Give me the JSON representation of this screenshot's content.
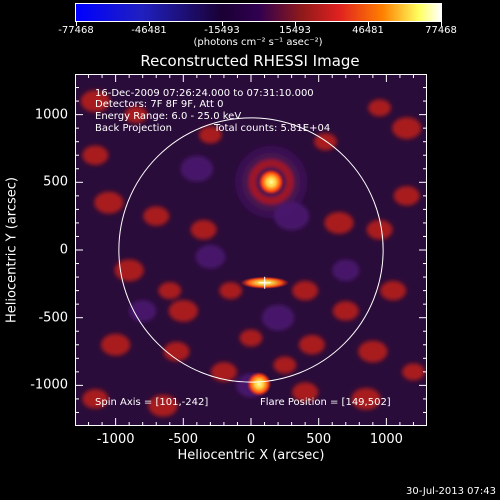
{
  "colorbar": {
    "tick_labels": [
      "-77468",
      "-46481",
      "-15493",
      "15493",
      "46481",
      "77468"
    ],
    "units": "(photons cm⁻² s⁻¹ asec⁻²)"
  },
  "title": "Reconstructed RHESSI Image",
  "info": {
    "time_range": "16-Dec-2009 07:26:24.000 to 07:31:10.000",
    "detectors": "Detectors: 7F 8F 9F, Att 0",
    "energy": "Energy Range: 6.0 - 25.0 keV",
    "method": "Back Projection",
    "counts": "Total counts: 5.81E+04",
    "spin_axis": "Spin Axis = [101,-242]",
    "flare_position": "Flare Position = [149,502]"
  },
  "footer": "30-Jul-2013 07:43",
  "chart_data": {
    "type": "heatmap",
    "title": "Reconstructed RHESSI Image",
    "xlabel": "Heliocentric X (arcsec)",
    "ylabel": "Heliocentric Y (arcsec)",
    "xlim": [
      -1300,
      1300
    ],
    "ylim": [
      -1300,
      1300
    ],
    "x_ticks": [
      -1000,
      -500,
      0,
      500,
      1000
    ],
    "y_ticks": [
      -1000,
      -500,
      0,
      500,
      1000
    ],
    "colorscale_range": [
      -77468,
      77468
    ],
    "solar_limb_radius": 976,
    "source_peak": [
      149,
      502
    ],
    "spin_axis_marker": [
      101,
      -242
    ],
    "colors": {
      "positive": "#ff2a1a",
      "hot": "#ffff80",
      "negative": "#5a1e78",
      "background": "#1a0628",
      "limb": "#ffffff"
    }
  }
}
